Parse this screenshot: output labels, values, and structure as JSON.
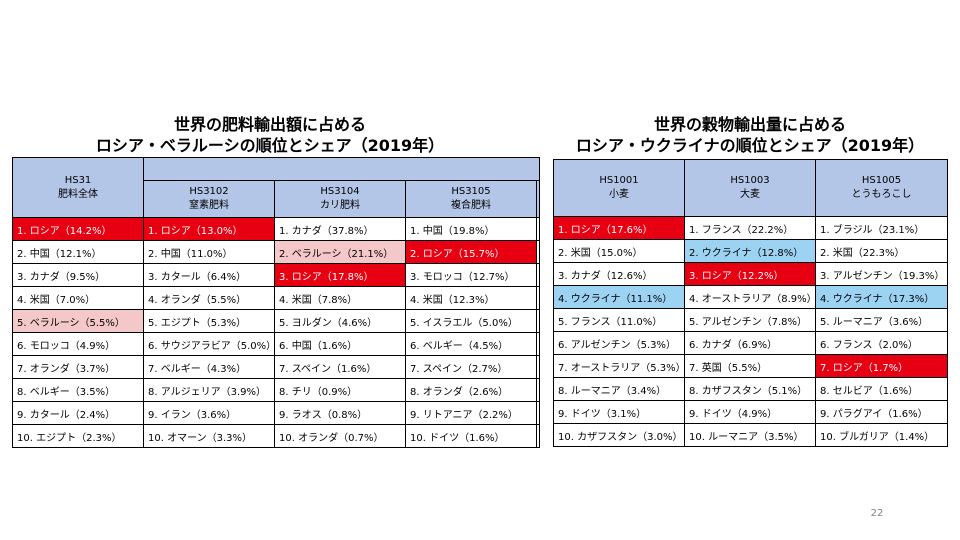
{
  "fertilizer": {
    "title_line1": "世界の肥料輸出額に占める",
    "title_line2": "ロシア・ベラルーシの順位とシェア（2019年）",
    "header": {
      "total_code": "HS31",
      "total_name": "肥料全体",
      "c1_code": "HS3102",
      "c1_name": "窒素肥料",
      "c2_code": "HS3104",
      "c2_name": "カリ肥料",
      "c3_code": "HS3105",
      "c3_name": "複合肥料"
    },
    "rows": [
      [
        "1. ロシア（14.2%）",
        "1. ロシア（13.0%）",
        "1. カナダ（37.8%）",
        "1. 中国（19.8%）"
      ],
      [
        "2. 中国（12.1%）",
        "2. 中国（11.0%）",
        "2. ベラルーシ（21.1%）",
        "2. ロシア（15.7%）"
      ],
      [
        "3. カナダ（9.5%）",
        "3. カタール（6.4%）",
        "3. ロシア（17.8%）",
        "3. モロッコ（12.7%）"
      ],
      [
        "4. 米国（7.0%）",
        "4. オランダ（5.5%）",
        "4. 米国（7.8%）",
        "4. 米国（12.3%）"
      ],
      [
        "5. ベラルーシ（5.5%）",
        "5. エジプト（5.3%）",
        "5. ヨルダン（4.6%）",
        "5. イスラエル（5.0%）"
      ],
      [
        "6. モロッコ（4.9%）",
        "6. サウジアラビア（5.0%）",
        "6. 中国（1.6%）",
        "6. ベルギー（4.5%）"
      ],
      [
        "7. オランダ（3.7%）",
        "7. ベルギー（4.3%）",
        "7. スペイン（1.6%）",
        "7. スペイン（2.7%）"
      ],
      [
        "8. ベルギー（3.5%）",
        "8. アルジェリア（3.9%）",
        "8. チリ（0.9%）",
        "8. オランダ（2.6%）"
      ],
      [
        "9. カタール（2.4%）",
        "9. イラン（3.6%）",
        "9. ラオス（0.8%）",
        "9. リトアニア（2.2%）"
      ],
      [
        "10. エジプト（2.3%）",
        "10. オマーン（3.3%）",
        "10. オランダ（0.7%）",
        "10. ドイツ（1.6%）"
      ]
    ]
  },
  "grain": {
    "title_line1": "世界の穀物輸出量に占める",
    "title_line2": "ロシア・ウクライナの順位とシェア（2019年）",
    "header": {
      "c1_code": "HS1001",
      "c1_name": "小麦",
      "c2_code": "HS1003",
      "c2_name": "大麦",
      "c3_code": "HS1005",
      "c3_name": "とうもろこし"
    },
    "rows": [
      [
        "1. ロシア（17.6%）",
        "1. フランス（22.2%）",
        "1. ブラジル（23.1%）"
      ],
      [
        "2. 米国（15.0%）",
        "2. ウクライナ（12.8%）",
        "2. 米国（22.3%）"
      ],
      [
        "3. カナダ（12.6%）",
        "3. ロシア（12.2%）",
        "3. アルゼンチン（19.3%）"
      ],
      [
        "4. ウクライナ（11.1%）",
        "4. オーストラリア（8.9%）",
        "4. ウクライナ（17.3%）"
      ],
      [
        "5. フランス（11.0%）",
        "5. アルゼンチン（7.8%）",
        "5. ルーマニア（3.6%）"
      ],
      [
        "6. アルゼンチン（5.3%）",
        "6. カナダ（6.9%）",
        "6. フランス（2.0%）"
      ],
      [
        "7. オーストラリア（5.3%）",
        "7. 英国（5.5%）",
        "7. ロシア（1.7%）"
      ],
      [
        "8. ルーマニア（3.4%）",
        "8. カザフスタン（5.1%）",
        "8. セルビア（1.6%）"
      ],
      [
        "9. ドイツ（3.1%）",
        "9. ドイツ（4.9%）",
        "9. パラグアイ（1.6%）"
      ],
      [
        "10. カザフスタン（3.0%）",
        "10. ルーマニア（3.5%）",
        "10. ブルガリア（1.4%）"
      ]
    ]
  },
  "highlight_colors": {
    "russia": "#e60012",
    "belarus": "#f4c7c9",
    "ukraine": "#9dd3f2",
    "header": "#b4c6e7"
  },
  "page_number": "22"
}
